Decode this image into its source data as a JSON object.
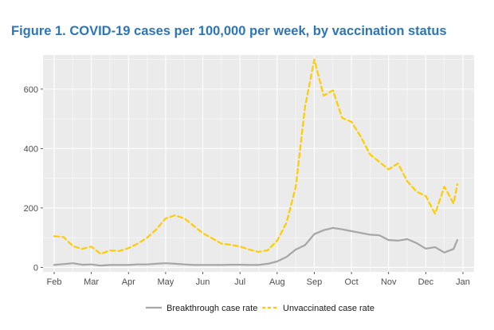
{
  "title": "Figure 1. COVID-19 cases per 100,000 per week, by vaccination status",
  "colors": {
    "title": "#2e75b6",
    "panel_background": "#ebebeb",
    "gridline": "#ffffff",
    "breakthrough": "#a6a6a6",
    "unvaccinated": "#ffcc00"
  },
  "chart_data": {
    "type": "line",
    "title": "Figure 1. COVID-19 cases per 100,000 per week, by vaccination status",
    "xlabel": "",
    "ylabel": "",
    "xlim": [
      -0.3,
      11.3
    ],
    "ylim": [
      -15,
      715
    ],
    "grid": true,
    "legend_position": "bottom",
    "x_ticks": [
      {
        "label": "Feb",
        "value": 0
      },
      {
        "label": "Mar",
        "value": 1
      },
      {
        "label": "Apr",
        "value": 2
      },
      {
        "label": "May",
        "value": 3
      },
      {
        "label": "Jun",
        "value": 4
      },
      {
        "label": "Jul",
        "value": 5
      },
      {
        "label": "Aug",
        "value": 6
      },
      {
        "label": "Sep",
        "value": 7
      },
      {
        "label": "Oct",
        "value": 8
      },
      {
        "label": "Nov",
        "value": 9
      },
      {
        "label": "Dec",
        "value": 10
      },
      {
        "label": "Jan",
        "value": 11
      }
    ],
    "y_ticks": [
      0,
      200,
      400,
      600
    ],
    "x": [
      0,
      0.25,
      0.5,
      0.75,
      1,
      1.25,
      1.5,
      1.75,
      2,
      2.25,
      2.5,
      2.75,
      3,
      3.25,
      3.5,
      3.75,
      4,
      4.25,
      4.5,
      4.75,
      5,
      5.25,
      5.5,
      5.75,
      6,
      6.25,
      6.5,
      6.75,
      7,
      7.25,
      7.5,
      7.75,
      8,
      8.25,
      8.5,
      8.75,
      9,
      9.25,
      9.5,
      9.75,
      10,
      10.25,
      10.5,
      10.75,
      10.85
    ],
    "series": [
      {
        "name": "Breakthrough case rate",
        "style": "solid",
        "values": [
          8,
          11,
          14,
          9,
          10,
          6,
          8,
          8,
          8,
          10,
          10,
          12,
          14,
          12,
          10,
          8,
          8,
          8,
          8,
          9,
          9,
          8,
          8,
          12,
          20,
          35,
          60,
          75,
          112,
          125,
          133,
          128,
          122,
          116,
          110,
          108,
          92,
          90,
          95,
          82,
          63,
          68,
          50,
          62,
          92
        ]
      },
      {
        "name": "Unvaccinated case rate",
        "style": "dashed",
        "values": [
          105,
          102,
          72,
          62,
          70,
          45,
          57,
          55,
          65,
          80,
          100,
          128,
          165,
          175,
          165,
          140,
          115,
          98,
          80,
          76,
          70,
          60,
          52,
          58,
          90,
          150,
          270,
          540,
          700,
          578,
          596,
          503,
          490,
          440,
          380,
          355,
          330,
          350,
          290,
          255,
          240,
          180,
          272,
          215,
          280
        ]
      }
    ]
  }
}
